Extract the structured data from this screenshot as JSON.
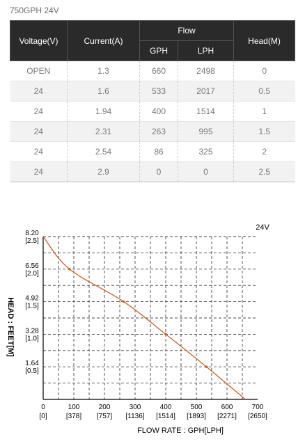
{
  "title": "750GPH 24V",
  "table": {
    "headers": {
      "voltage": "Voltage(V)",
      "current": "Current(A)",
      "flow": "Flow",
      "gph": "GPH",
      "lph": "LPH",
      "head": "Head(M)"
    },
    "rows": [
      [
        "OPEN",
        "1.3",
        "660",
        "2498",
        "0"
      ],
      [
        "24",
        "1.6",
        "533",
        "2017",
        "0.5"
      ],
      [
        "24",
        "1.94",
        "400",
        "1514",
        "1"
      ],
      [
        "24",
        "2.31",
        "263",
        "995",
        "1.5"
      ],
      [
        "24",
        "2.54",
        "86",
        "325",
        "2"
      ],
      [
        "24",
        "2.9",
        "0",
        "0",
        "2.5"
      ]
    ]
  },
  "chart_data": {
    "type": "line",
    "series_label": "24V",
    "xlabel": "FLOW RATE : GPH[LPH]",
    "ylabel": "HEAD : FEET[M]",
    "xlim": [
      0,
      700
    ],
    "ylim": [
      0,
      8.2
    ],
    "x_ticks": [
      {
        "value": 0,
        "label": "0",
        "sub": "[0]"
      },
      {
        "value": 100,
        "label": "100",
        "sub": "[378]"
      },
      {
        "value": 200,
        "label": "200",
        "sub": "[757]"
      },
      {
        "value": 300,
        "label": "300",
        "sub": "[1136]"
      },
      {
        "value": 400,
        "label": "400",
        "sub": "[1514]"
      },
      {
        "value": 500,
        "label": "500",
        "sub": "[1893]"
      },
      {
        "value": 600,
        "label": "600",
        "sub": "[2271]"
      },
      {
        "value": 700,
        "label": "700",
        "sub": "[2650]"
      }
    ],
    "y_ticks": [
      {
        "value": 1.64,
        "label": "1.64",
        "sub": "[0.5]"
      },
      {
        "value": 3.28,
        "label": "3.28",
        "sub": "[1.0]"
      },
      {
        "value": 4.92,
        "label": "4.92",
        "sub": "[1.5]"
      },
      {
        "value": 6.56,
        "label": "6.56",
        "sub": "[2.0]"
      },
      {
        "value": 8.2,
        "label": "8.20",
        "sub": "[2.5]"
      }
    ],
    "x_grid": [
      50,
      100,
      150,
      200,
      250,
      300,
      350,
      400,
      450,
      500,
      550,
      600,
      650
    ],
    "y_grid": [
      0.82,
      1.64,
      2.46,
      3.28,
      4.1,
      4.92,
      5.74,
      6.56,
      7.38,
      8.2
    ],
    "series": [
      {
        "color": "#c8622a",
        "points": [
          [
            0,
            8.2
          ],
          [
            86,
            6.56
          ],
          [
            263,
            4.92
          ],
          [
            400,
            3.28
          ],
          [
            533,
            1.64
          ],
          [
            660,
            0
          ]
        ]
      }
    ]
  }
}
